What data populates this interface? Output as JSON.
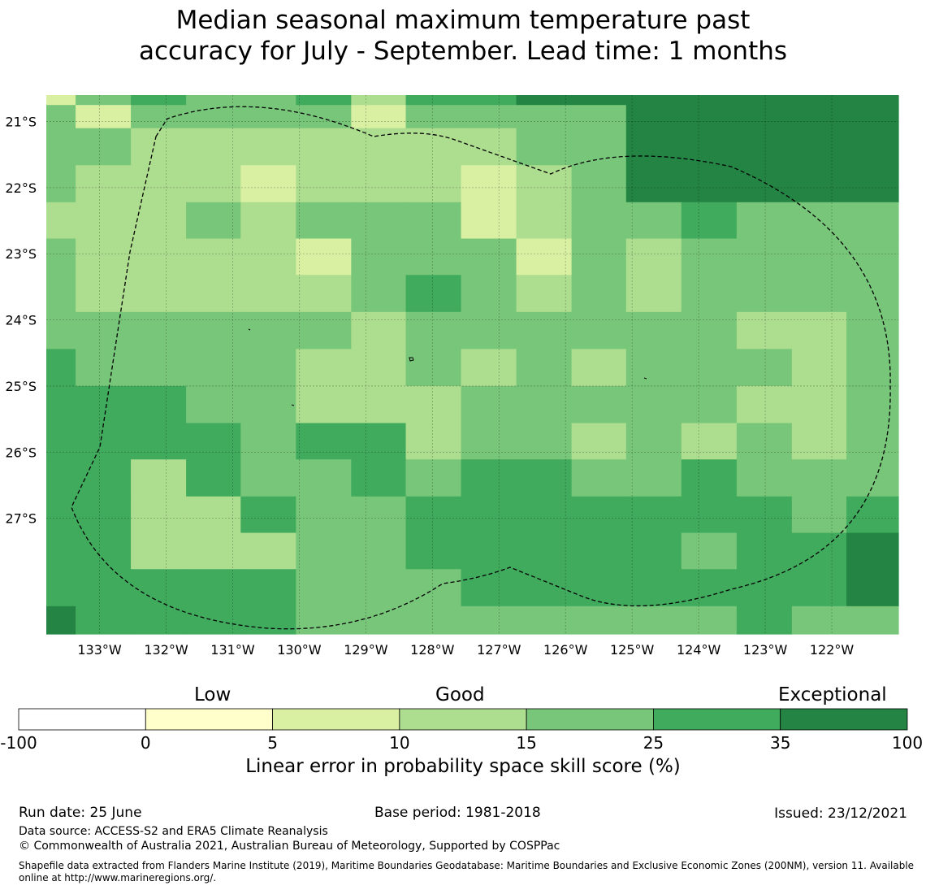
{
  "title": {
    "line1": "Median seasonal maximum temperature past",
    "line2": "accuracy for July - September. Lead time: 1 months"
  },
  "map": {
    "lon_range": [
      -133.8,
      -121.0
    ],
    "lat_range": [
      -20.6,
      -28.75
    ],
    "lon_ticks": [
      "133°W",
      "132°W",
      "131°W",
      "130°W",
      "129°W",
      "128°W",
      "127°W",
      "126°W",
      "125°W",
      "124°W",
      "123°W",
      "122°W"
    ],
    "lon_tick_values": [
      -133,
      -132,
      -131,
      -130,
      -129,
      -128,
      -127,
      -126,
      -125,
      -124,
      -123,
      -122
    ],
    "lat_ticks": [
      "21°S",
      "22°S",
      "23°S",
      "24°S",
      "25°S",
      "26°S",
      "27°S"
    ],
    "lat_tick_values": [
      -21,
      -22,
      -23,
      -24,
      -25,
      -26,
      -27
    ],
    "boundary_style": "dashed",
    "grid": true
  },
  "colorbar": {
    "category_labels": [
      "Low",
      "Good",
      "Exceptional"
    ],
    "bins": [
      {
        "from": "-100",
        "to": "0",
        "color": "#ffffff"
      },
      {
        "from": "0",
        "to": "5",
        "color": "#ffffcc"
      },
      {
        "from": "5",
        "to": "10",
        "color": "#d9f0a3"
      },
      {
        "from": "10",
        "to": "15",
        "color": "#addd8e"
      },
      {
        "from": "15",
        "to": "25",
        "color": "#78c679"
      },
      {
        "from": "25",
        "to": "35",
        "color": "#41ab5d"
      },
      {
        "from": "35",
        "to": "100",
        "color": "#238443"
      }
    ],
    "tick_labels": [
      "-100",
      "0",
      "5",
      "10",
      "15",
      "25",
      "35",
      "100"
    ],
    "title": "Linear error in probability space skill score (%)"
  },
  "footer": {
    "run_date": "Run date: 25 June",
    "base_period": "Base period: 1981-2018",
    "issued": "Issued: 23/12/2021",
    "data_source": "Data source: ACCESS-S2 and ERA5 Climate Reanalysis",
    "copyright": "© Commonwealth of Australia 2021, Australian Bureau of Meteorology, Supported by COSPPac",
    "shapefile": "Shapefile data extracted from Flanders Marine Institute (2019), Maritime Boundaries Geodatabase: Maritime Boundaries and Exclusive Economic Zones (200NM), version 11. Available online at http://www.marineregions.org/."
  },
  "chart_data": {
    "type": "heatmap",
    "title": "Median seasonal maximum temperature past accuracy for July - September. Lead time: 1 months",
    "colorbar_label": "Linear error in probability space skill score (%)",
    "color_scale": {
      "0": "#ffffcc",
      "1": "#d9f0a3",
      "2": "#addd8e",
      "3": "#78c679",
      "4": "#41ab5d",
      "5": "#238443"
    },
    "col_lon_edges": [
      -133.8,
      -133.36,
      -132.53,
      -131.7,
      -130.88,
      -130.05,
      -129.22,
      -128.4,
      -127.57,
      -126.74,
      -125.91,
      -125.09,
      -124.26,
      -123.43,
      -122.6,
      -121.78,
      -121.0
    ],
    "row_lat_edges": [
      -20.6,
      -20.75,
      -21.1,
      -21.66,
      -22.22,
      -22.77,
      -23.32,
      -23.88,
      -24.44,
      -25.0,
      -25.56,
      -26.11,
      -26.67,
      -27.22,
      -27.77,
      -28.33,
      -28.75
    ],
    "grid_classes": [
      [
        1,
        3,
        4,
        3,
        3,
        4,
        2,
        4,
        4,
        5,
        5,
        5,
        5,
        5,
        5,
        5
      ],
      [
        3,
        1,
        3,
        3,
        3,
        3,
        1,
        3,
        3,
        3,
        3,
        5,
        5,
        5,
        5,
        5
      ],
      [
        3,
        3,
        2,
        2,
        2,
        2,
        2,
        2,
        2,
        3,
        3,
        5,
        5,
        5,
        5,
        5
      ],
      [
        3,
        2,
        2,
        2,
        1,
        2,
        2,
        2,
        1,
        2,
        3,
        5,
        5,
        5,
        5,
        5
      ],
      [
        2,
        2,
        2,
        3,
        2,
        3,
        3,
        3,
        1,
        2,
        3,
        3,
        4,
        3,
        3,
        3
      ],
      [
        3,
        2,
        2,
        2,
        2,
        1,
        3,
        3,
        3,
        1,
        3,
        2,
        3,
        3,
        3,
        3
      ],
      [
        3,
        2,
        2,
        2,
        2,
        2,
        3,
        4,
        3,
        2,
        3,
        2,
        3,
        3,
        3,
        3
      ],
      [
        3,
        3,
        3,
        3,
        3,
        3,
        2,
        3,
        3,
        3,
        3,
        3,
        3,
        2,
        2,
        3
      ],
      [
        4,
        3,
        3,
        3,
        3,
        2,
        2,
        3,
        2,
        3,
        2,
        3,
        3,
        3,
        2,
        3
      ],
      [
        4,
        4,
        4,
        3,
        3,
        2,
        2,
        2,
        3,
        3,
        3,
        3,
        3,
        2,
        2,
        3
      ],
      [
        4,
        4,
        4,
        4,
        3,
        4,
        4,
        2,
        3,
        3,
        2,
        3,
        2,
        3,
        2,
        3
      ],
      [
        4,
        4,
        2,
        4,
        3,
        3,
        4,
        3,
        4,
        4,
        3,
        3,
        4,
        3,
        3,
        3
      ],
      [
        4,
        4,
        2,
        2,
        4,
        3,
        3,
        4,
        4,
        4,
        4,
        4,
        4,
        4,
        3,
        4
      ],
      [
        4,
        4,
        2,
        2,
        2,
        3,
        3,
        4,
        4,
        4,
        4,
        4,
        3,
        4,
        4,
        5
      ],
      [
        4,
        4,
        4,
        4,
        4,
        3,
        3,
        3,
        4,
        4,
        4,
        4,
        4,
        4,
        4,
        5
      ],
      [
        5,
        4,
        4,
        4,
        4,
        3,
        3,
        3,
        3,
        3,
        3,
        3,
        3,
        4,
        3,
        3
      ]
    ]
  }
}
